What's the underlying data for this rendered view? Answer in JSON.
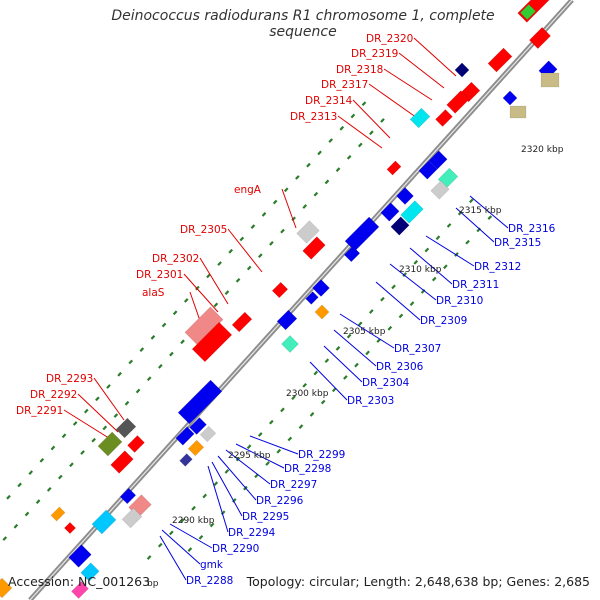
{
  "title": "Deinococcus radiodurans R1 chromosome 1, complete sequence",
  "footer": {
    "accession": "Accession: NC_001263",
    "topology": "Topology: circular; Length: 2,648,638 bp; Genes: 2,685"
  },
  "colors": {
    "backbone": "#9a9a9a",
    "forward_label": "#e00000",
    "reverse_label": "#0000e0",
    "tick": "#2a7d2a"
  },
  "scale_ticks": [
    "2290 kbp",
    "2295 kbp",
    "2300 kbp",
    "2305 kbp",
    "2310 kbp",
    "2315 kbp",
    "2320 kbp"
  ],
  "forward_labels": [
    "DR_2291",
    "DR_2292",
    "DR_2293",
    "alaS",
    "DR_2301",
    "DR_2302",
    "DR_2305",
    "engA",
    "DR_2313",
    "DR_2314",
    "DR_2317",
    "DR_2318",
    "DR_2319",
    "DR_2320"
  ],
  "reverse_labels": [
    "DR_2288",
    "gmk",
    "DR_2290",
    "DR_2294",
    "DR_2295",
    "DR_2296",
    "DR_2297",
    "DR_2298",
    "DR_2299",
    "DR_2303",
    "DR_2304",
    "DR_2306",
    "DR_2307",
    "DR_2309",
    "DR_2310",
    "DR_2311",
    "DR_2312",
    "DR_2315",
    "DR_2316"
  ],
  "partial_footer_fragment": "bp"
}
